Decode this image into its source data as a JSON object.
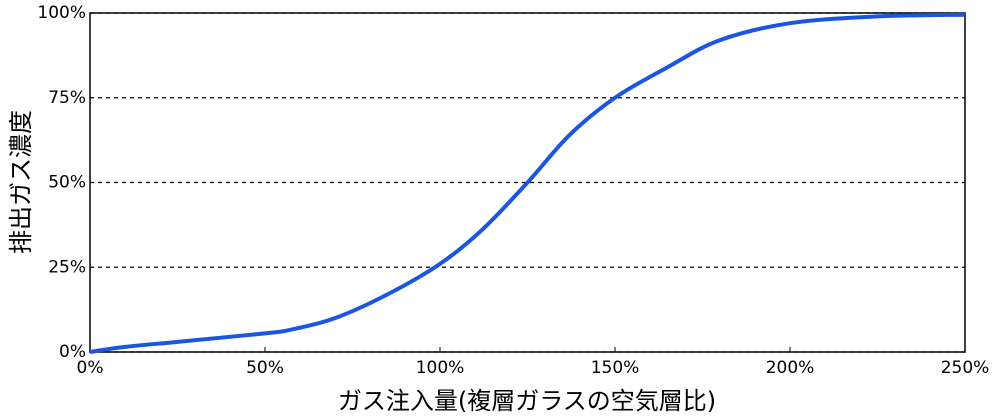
{
  "chart_data": {
    "type": "line",
    "x_label": "ガス注入量(複層ガラスの空気層比)",
    "y_label": "排出ガス濃度",
    "x": [
      0,
      10,
      25,
      50,
      57,
      70,
      85,
      100,
      112,
      125,
      137,
      150,
      165,
      180,
      200,
      225,
      250
    ],
    "values": [
      0,
      1.5,
      3,
      5.5,
      6.5,
      10,
      17,
      26,
      36,
      50,
      64,
      75,
      84,
      92,
      97,
      99,
      99.5
    ],
    "color": "#1a56e0",
    "xlim": [
      0,
      250
    ],
    "xticks": [
      {
        "value": 0,
        "label": "0%"
      },
      {
        "value": 50,
        "label": "50%"
      },
      {
        "value": 100,
        "label": "100%"
      },
      {
        "value": 150,
        "label": "150%"
      },
      {
        "value": 200,
        "label": "200%"
      },
      {
        "value": 250,
        "label": "250%"
      }
    ],
    "ylim": [
      0,
      100
    ],
    "yticks": [
      {
        "value": 0,
        "label": "0%"
      },
      {
        "value": 25,
        "label": "25%"
      },
      {
        "value": 50,
        "label": "50%"
      },
      {
        "value": 75,
        "label": "75%"
      },
      {
        "value": 100,
        "label": "100%"
      }
    ],
    "grid": true
  }
}
